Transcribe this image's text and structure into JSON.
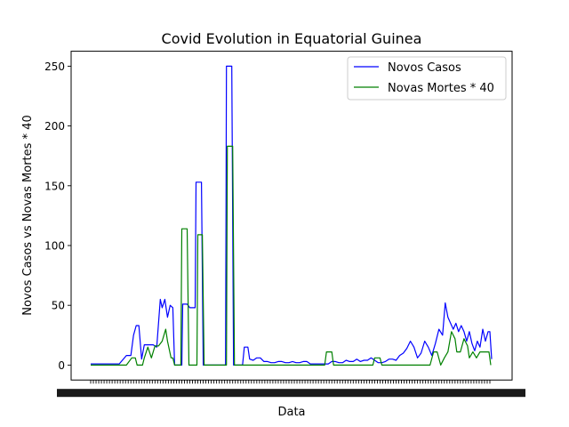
{
  "chart_data": {
    "type": "line",
    "title": "Covid Evolution in Equatorial Guinea",
    "xlabel": "Data",
    "ylabel": "Novos Casos vs Novas Mortes * 40",
    "ylim": [
      -12.5,
      262.5
    ],
    "y_ticks": [
      0,
      50,
      100,
      150,
      200,
      250
    ],
    "x_tick_labels_note": "Dense overlapping date tick labels (unreadable), one per day",
    "legend_position": "upper right",
    "colors": {
      "Novos Casos": "#0000ff",
      "Novas Mortes * 40": "#008000"
    },
    "series": [
      {
        "name": "Novos Casos",
        "points": [
          [
            0,
            1
          ],
          [
            5,
            1
          ],
          [
            12,
            1
          ],
          [
            18,
            1
          ],
          [
            27,
            1
          ],
          [
            32,
            1
          ],
          [
            40,
            8
          ],
          [
            45,
            8
          ],
          [
            48,
            25
          ],
          [
            51,
            33
          ],
          [
            54,
            33
          ],
          [
            57,
            5
          ],
          [
            60,
            17
          ],
          [
            70,
            17
          ],
          [
            74,
            15
          ],
          [
            78,
            55
          ],
          [
            80,
            48
          ],
          [
            83,
            55
          ],
          [
            86,
            40
          ],
          [
            89,
            50
          ],
          [
            92,
            48
          ],
          [
            94,
            0
          ],
          [
            102,
            0
          ],
          [
            103,
            51
          ],
          [
            108,
            51
          ],
          [
            111,
            48
          ],
          [
            117,
            48
          ],
          [
            118,
            153
          ],
          [
            124,
            153
          ],
          [
            126,
            0
          ],
          [
            151,
            0
          ],
          [
            152,
            250
          ],
          [
            158,
            250
          ],
          [
            160,
            0
          ],
          [
            170,
            0
          ],
          [
            172,
            15
          ],
          [
            176,
            15
          ],
          [
            178,
            5
          ],
          [
            182,
            4
          ],
          [
            186,
            6
          ],
          [
            190,
            6
          ],
          [
            194,
            3
          ],
          [
            198,
            3
          ],
          [
            202,
            2
          ],
          [
            206,
            2
          ],
          [
            210,
            3
          ],
          [
            214,
            3
          ],
          [
            218,
            2
          ],
          [
            222,
            2
          ],
          [
            226,
            3
          ],
          [
            230,
            2
          ],
          [
            234,
            2
          ],
          [
            238,
            3
          ],
          [
            242,
            3
          ],
          [
            246,
            1
          ],
          [
            250,
            1
          ],
          [
            254,
            1
          ],
          [
            258,
            1
          ],
          [
            262,
            1
          ],
          [
            266,
            1
          ],
          [
            270,
            3
          ],
          [
            274,
            3
          ],
          [
            278,
            2
          ],
          [
            282,
            2
          ],
          [
            286,
            4
          ],
          [
            290,
            3
          ],
          [
            294,
            3
          ],
          [
            298,
            5
          ],
          [
            302,
            3
          ],
          [
            306,
            4
          ],
          [
            310,
            4
          ],
          [
            314,
            6
          ],
          [
            318,
            4
          ],
          [
            322,
            2
          ],
          [
            326,
            2
          ],
          [
            330,
            3
          ],
          [
            334,
            5
          ],
          [
            338,
            5
          ],
          [
            342,
            4
          ],
          [
            346,
            8
          ],
          [
            350,
            10
          ],
          [
            354,
            14
          ],
          [
            358,
            20
          ],
          [
            362,
            15
          ],
          [
            366,
            6
          ],
          [
            370,
            10
          ],
          [
            374,
            20
          ],
          [
            378,
            15
          ],
          [
            382,
            8
          ],
          [
            386,
            18
          ],
          [
            390,
            30
          ],
          [
            394,
            25
          ],
          [
            397,
            52
          ],
          [
            400,
            40
          ],
          [
            403,
            35
          ],
          [
            406,
            30
          ],
          [
            409,
            35
          ],
          [
            412,
            28
          ],
          [
            415,
            33
          ],
          [
            418,
            28
          ],
          [
            421,
            20
          ],
          [
            424,
            28
          ],
          [
            427,
            18
          ],
          [
            430,
            12
          ],
          [
            433,
            20
          ],
          [
            436,
            15
          ],
          [
            439,
            30
          ],
          [
            442,
            20
          ],
          [
            445,
            28
          ],
          [
            447,
            28
          ],
          [
            449,
            5
          ]
        ]
      },
      {
        "name": "Novas Mortes * 40",
        "points": [
          [
            0,
            0
          ],
          [
            40,
            0
          ],
          [
            46,
            6
          ],
          [
            50,
            6
          ],
          [
            52,
            0
          ],
          [
            58,
            0
          ],
          [
            60,
            6
          ],
          [
            64,
            15
          ],
          [
            68,
            6
          ],
          [
            72,
            16
          ],
          [
            76,
            16
          ],
          [
            80,
            20
          ],
          [
            84,
            30
          ],
          [
            86,
            20
          ],
          [
            90,
            6
          ],
          [
            92,
            6
          ],
          [
            94,
            0
          ],
          [
            101,
            0
          ],
          [
            102,
            114
          ],
          [
            108,
            114
          ],
          [
            110,
            0
          ],
          [
            119,
            0
          ],
          [
            120,
            109
          ],
          [
            125,
            109
          ],
          [
            127,
            0
          ],
          [
            152,
            0
          ],
          [
            153,
            183
          ],
          [
            159,
            183
          ],
          [
            161,
            0
          ],
          [
            262,
            0
          ],
          [
            264,
            11
          ],
          [
            270,
            11
          ],
          [
            272,
            0
          ],
          [
            316,
            0
          ],
          [
            318,
            6
          ],
          [
            324,
            6
          ],
          [
            326,
            0
          ],
          [
            380,
            0
          ],
          [
            384,
            11
          ],
          [
            388,
            11
          ],
          [
            392,
            0
          ],
          [
            396,
            6
          ],
          [
            400,
            11
          ],
          [
            404,
            28
          ],
          [
            408,
            22
          ],
          [
            410,
            11
          ],
          [
            414,
            11
          ],
          [
            418,
            22
          ],
          [
            422,
            16
          ],
          [
            424,
            6
          ],
          [
            428,
            11
          ],
          [
            432,
            6
          ],
          [
            436,
            11
          ],
          [
            440,
            11
          ],
          [
            444,
            11
          ],
          [
            446,
            11
          ],
          [
            448,
            0
          ]
        ]
      }
    ],
    "x_domain": [
      0,
      449
    ]
  }
}
